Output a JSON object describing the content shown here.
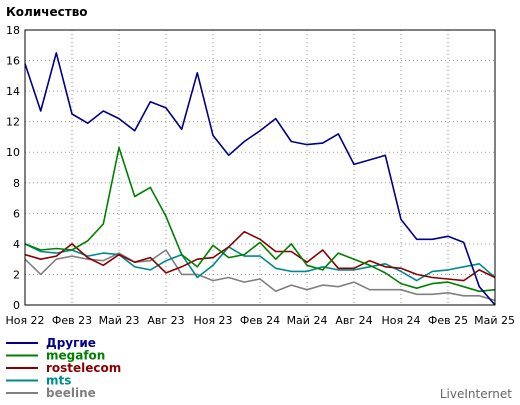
{
  "chart_data": {
    "type": "line",
    "ylabel": "Количество",
    "xlabel": "",
    "ylim": [
      0,
      18
    ],
    "yticks": [
      0,
      2,
      4,
      6,
      8,
      10,
      12,
      14,
      16,
      18
    ],
    "grid": true,
    "x_tick_labels": [
      "Ноя 22",
      "Фев 23",
      "Май 23",
      "Авг 23",
      "Ноя 23",
      "Фев 24",
      "Май 24",
      "Авг 24",
      "Ноя 24",
      "Фев 25",
      "Май 25"
    ],
    "points_per_tick": 3,
    "legend_position": "bottom-left",
    "series": [
      {
        "name": "Другие",
        "color": "#00008b",
        "values": [
          15.8,
          12.7,
          16.5,
          12.5,
          11.9,
          12.7,
          12.2,
          11.4,
          13.3,
          12.9,
          11.5,
          15.2,
          11.1,
          9.8,
          10.7,
          11.4,
          12.2,
          10.7,
          10.5,
          10.6,
          11.2,
          9.2,
          9.5,
          9.8,
          5.6,
          4.3,
          4.3,
          4.5,
          4.1,
          1.2,
          0.0
        ]
      },
      {
        "name": "megafon",
        "color": "#008000",
        "values": [
          4.0,
          3.6,
          3.7,
          3.6,
          4.2,
          5.3,
          10.3,
          7.1,
          7.7,
          5.8,
          3.3,
          2.5,
          3.9,
          3.1,
          3.3,
          4.1,
          3.0,
          4.0,
          2.6,
          2.3,
          3.4,
          3.0,
          2.6,
          2.1,
          1.4,
          1.1,
          1.4,
          1.5,
          1.2,
          0.9,
          1.0
        ]
      },
      {
        "name": "rostelecom",
        "color": "#8b0000",
        "values": [
          3.3,
          3.0,
          3.2,
          4.0,
          3.1,
          2.6,
          3.3,
          2.8,
          3.1,
          2.1,
          2.5,
          3.0,
          3.1,
          3.8,
          4.8,
          4.3,
          3.5,
          3.5,
          2.8,
          3.6,
          2.4,
          2.4,
          2.9,
          2.5,
          2.4,
          2.0,
          1.8,
          1.7,
          1.6,
          2.3,
          1.8
        ]
      },
      {
        "name": "mts",
        "color": "#008b8b",
        "values": [
          4.0,
          3.5,
          3.4,
          3.6,
          3.2,
          3.4,
          3.3,
          2.5,
          2.3,
          2.9,
          3.3,
          1.8,
          2.6,
          3.8,
          3.2,
          3.2,
          2.4,
          2.2,
          2.2,
          2.5,
          2.3,
          2.3,
          2.5,
          2.7,
          2.2,
          1.6,
          2.2,
          2.3,
          2.5,
          2.7,
          1.8
        ]
      },
      {
        "name": "beeline",
        "color": "#808080",
        "values": [
          3.0,
          2.0,
          3.0,
          3.2,
          3.0,
          2.9,
          3.4,
          2.8,
          2.9,
          3.6,
          2.0,
          2.0,
          1.6,
          1.8,
          1.5,
          1.7,
          0.9,
          1.3,
          1.0,
          1.3,
          1.2,
          1.5,
          1.0,
          1.0,
          1.0,
          0.7,
          0.7,
          0.8,
          0.6,
          0.6,
          0.3
        ]
      }
    ]
  },
  "branding": "LiveInternet"
}
